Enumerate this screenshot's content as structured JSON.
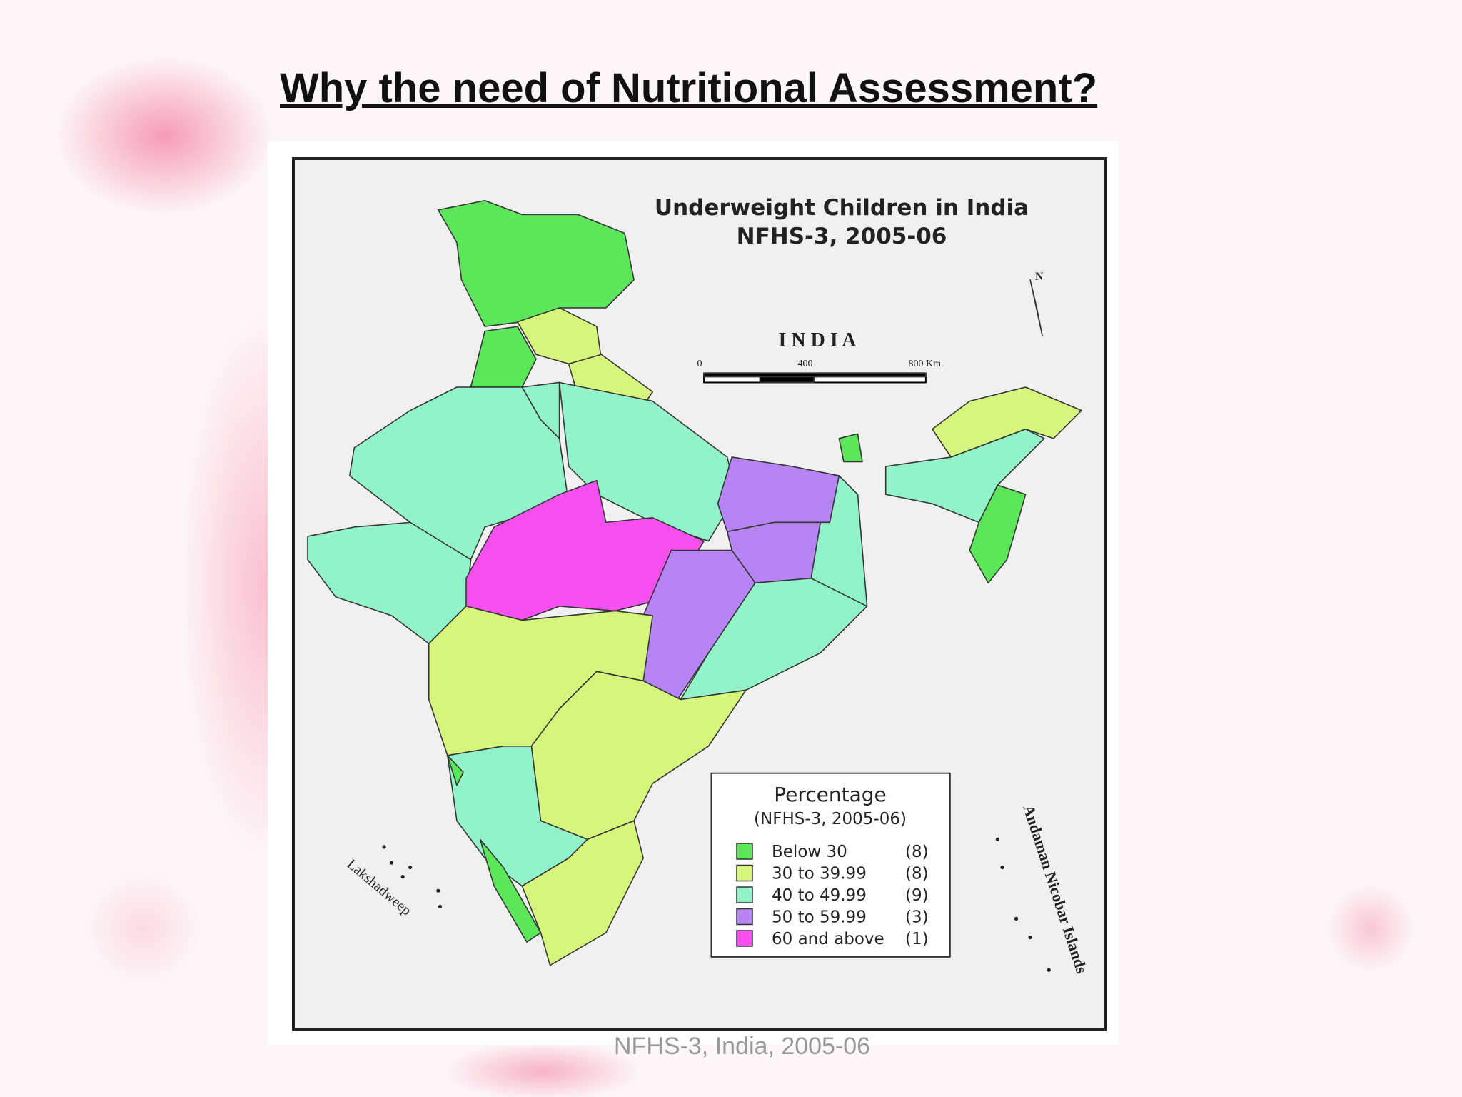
{
  "header": {
    "title": "Why the need of Nutritional Assessment?"
  },
  "map": {
    "title": "Underweight Children in India",
    "subtitle": "NFHS-3, 2005-06",
    "country": "I N D I A",
    "scale": [
      "0",
      "400",
      "800 Km."
    ],
    "north": "N",
    "labels": {
      "lakshadweep": "Lakshadweep",
      "andaman": "Andaman Nicobar Islands"
    }
  },
  "legend": {
    "title": "Percentage",
    "subtitle": "(NFHS-3, 2005-06)",
    "items": [
      {
        "label": "Below 30",
        "count": "(8)",
        "color": "#5ce65a"
      },
      {
        "label": "30 to 39.99",
        "count": "(8)",
        "color": "#d6f57c"
      },
      {
        "label": "40 to 49.99",
        "count": "(9)",
        "color": "#92f2c9"
      },
      {
        "label": "50 to 59.99",
        "count": "(3)",
        "color": "#b784f6"
      },
      {
        "label": "60 and above",
        "count": "(1)",
        "color": "#f550ef"
      }
    ]
  },
  "footer": {
    "caption": "NFHS-3, India, 2005-06"
  }
}
